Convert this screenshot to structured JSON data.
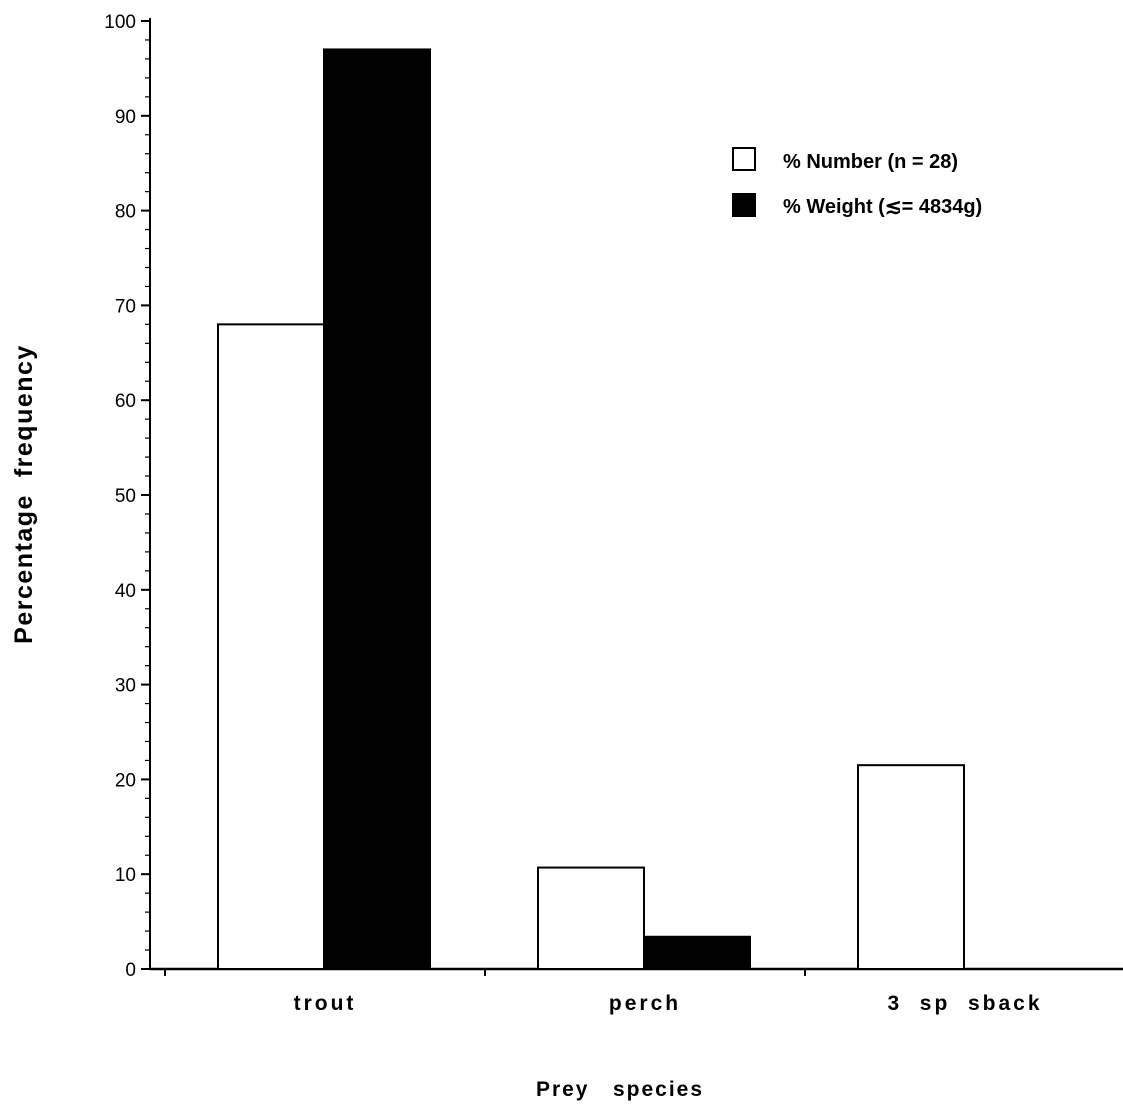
{
  "chart_data": {
    "type": "bar",
    "title": "",
    "xlabel": "Prey   species",
    "ylabel": "Percentage  frequency",
    "categories": [
      "trout",
      "perch",
      "3  sp  sback"
    ],
    "series": [
      {
        "name": "% Number (n = 28)",
        "values": [
          68,
          10.7,
          21.5
        ],
        "fill": "#ffffff",
        "stroke": "#000000"
      },
      {
        "name": "% Weight (≲= 4834g)",
        "values": [
          97,
          3.4,
          0
        ],
        "fill": "#000000",
        "stroke": "#000000"
      }
    ],
    "ylim": [
      0,
      100
    ],
    "yticks": [
      0,
      10,
      20,
      30,
      40,
      50,
      60,
      70,
      80,
      90,
      100
    ],
    "grid": false,
    "legend_position": "top-right"
  }
}
